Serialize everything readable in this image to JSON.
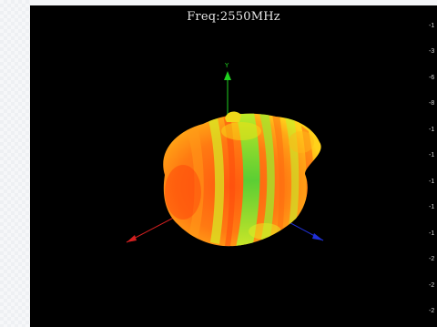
{
  "viewer": {
    "title": "Freq:2550MHz",
    "axes": {
      "y_label": "Y",
      "x_color": "#d42020",
      "y_color": "#1fd01f",
      "z_color": "#2030d8"
    },
    "pattern_colors": {
      "dark_orange": "#ff4a0c",
      "orange": "#ff8a12",
      "yellow": "#f5e014",
      "green": "#46e63a"
    },
    "scale_ticks": [
      "-1",
      "-3",
      "-6",
      "-8",
      "-1",
      "-1",
      "-1",
      "-1",
      "-1",
      "-2",
      "-2",
      "-2"
    ]
  }
}
